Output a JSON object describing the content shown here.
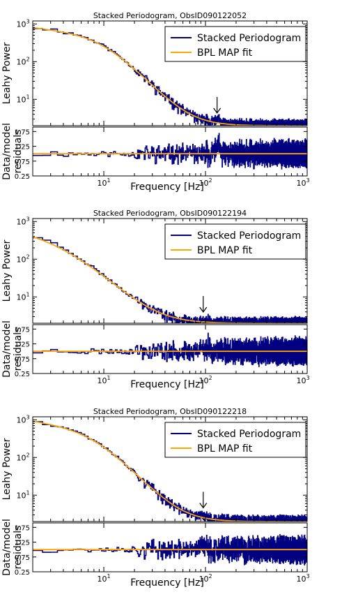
{
  "colors": {
    "data": "#000080",
    "fit": "#ffa500",
    "axes": "#000000"
  },
  "chart_data": [
    {
      "type": "line",
      "title": "Stacked Periodogram, ObsID090122052",
      "xlabel": "Frequency [Hz]",
      "ylabel_top": "Leahy Power",
      "ylabel_bottom": "Data/model residuals",
      "xscale": "log",
      "yscale_top": "log",
      "xlim": [
        2,
        1000
      ],
      "ylim_top": [
        2,
        1200
      ],
      "ylim_bottom": [
        0.25,
        1.9
      ],
      "x_ticks": [
        "10^1",
        "10^2",
        "10^3"
      ],
      "y_ticks_top": [
        "10^1",
        "10^2",
        "10^3"
      ],
      "y_ticks_bottom": [
        "0.25",
        "0.75",
        "1.25",
        "1.75"
      ],
      "legend": [
        "Stacked Periodogram",
        "BPL MAP fit"
      ],
      "legend_position": "top-right",
      "arrow_frequency": 130,
      "model": {
        "amplitude": 1000,
        "break_frequency": 10,
        "low_index": 0.3,
        "high_index": 2.8,
        "white_noise": 2
      },
      "residual_level": 1.0,
      "noise_seed": 11
    },
    {
      "type": "line",
      "title": "Stacked Periodogram, ObsID090122194",
      "xlabel": "Frequency [Hz]",
      "ylabel_top": "Leahy Power",
      "ylabel_bottom": "Data/model residuals",
      "xscale": "log",
      "yscale_top": "log",
      "xlim": [
        2,
        1000
      ],
      "ylim_top": [
        2,
        1200
      ],
      "ylim_bottom": [
        0.25,
        1.9
      ],
      "x_ticks": [
        "10^1",
        "10^2",
        "10^3"
      ],
      "y_ticks_top": [
        "10^1",
        "10^2",
        "10^3"
      ],
      "y_ticks_bottom": [
        "0.25",
        "0.75",
        "1.25",
        "1.75"
      ],
      "legend": [
        "Stacked Periodogram",
        "BPL MAP fit"
      ],
      "legend_position": "top-right",
      "arrow_frequency": 95,
      "model": {
        "amplitude": 700,
        "break_frequency": 4,
        "low_index": 0.5,
        "high_index": 2.4,
        "white_noise": 2
      },
      "residual_level": 1.0,
      "noise_seed": 23
    },
    {
      "type": "line",
      "title": "Stacked Periodogram, ObsID090122218",
      "xlabel": "Frequency [Hz]",
      "ylabel_top": "Leahy Power",
      "ylabel_bottom": "Data/model residuals",
      "xscale": "log",
      "yscale_top": "log",
      "xlim": [
        2,
        1000
      ],
      "ylim_top": [
        2,
        1200
      ],
      "ylim_bottom": [
        0.25,
        1.9
      ],
      "x_ticks": [
        "10^1",
        "10^2",
        "10^3"
      ],
      "y_ticks_top": [
        "10^1",
        "10^2",
        "10^3"
      ],
      "y_ticks_bottom": [
        "0.25",
        "0.75",
        "1.25",
        "1.75"
      ],
      "legend": [
        "Stacked Periodogram",
        "BPL MAP fit"
      ],
      "legend_position": "top-right",
      "arrow_frequency": 95,
      "model": {
        "amplitude": 1250,
        "break_frequency": 8,
        "low_index": 0.4,
        "high_index": 2.8,
        "white_noise": 2
      },
      "residual_level": 1.0,
      "noise_seed": 37
    }
  ]
}
